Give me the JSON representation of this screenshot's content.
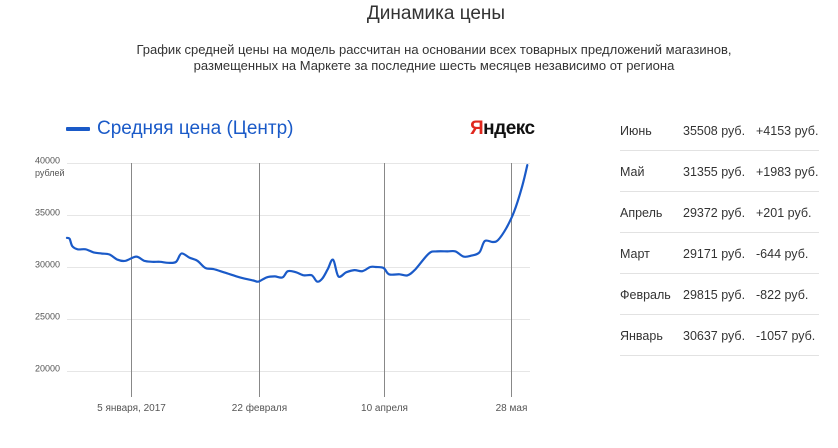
{
  "header": {
    "title": "Динамика цены",
    "subtitle_line1": "График средней цены на модель рассчитан на основании всех товарных предложений магазинов,",
    "subtitle_line2": "размещенных на Маркете за последние шесть месяцев независимо от региона"
  },
  "legend": {
    "label": "Средняя цена (Центр)"
  },
  "logo": {
    "first": "Я",
    "rest": "ндекс"
  },
  "colors": {
    "series": "#1a5ac8",
    "logo_red": "#e0281e",
    "grid": "#e6e6e6",
    "marker": "#888888"
  },
  "chart_data": {
    "type": "line",
    "title": "",
    "xlabel": "",
    "ylabel": "рублей",
    "ylim": [
      17500,
      40000
    ],
    "y_ticks": [
      20000,
      25000,
      30000,
      35000,
      40000
    ],
    "y_tick_labels": [
      "20000",
      "25000",
      "30000",
      "35000",
      "40000"
    ],
    "y_unit_label": "рублей",
    "x_range": [
      "2016-12-12",
      "2017-06-04"
    ],
    "x_ticks": [
      {
        "date": "2017-01-05",
        "label": "5 января, 2017"
      },
      {
        "date": "2017-02-22",
        "label": "22 февраля"
      },
      {
        "date": "2017-04-10",
        "label": "10 апреля"
      },
      {
        "date": "2017-05-28",
        "label": "28 мая"
      }
    ],
    "grid": true,
    "series": [
      {
        "name": "Средняя цена (Центр)",
        "points": [
          [
            "2016-12-12",
            32800
          ],
          [
            "2016-12-13",
            32700
          ],
          [
            "2016-12-14",
            32000
          ],
          [
            "2016-12-16",
            31700
          ],
          [
            "2016-12-19",
            31700
          ],
          [
            "2016-12-22",
            31400
          ],
          [
            "2016-12-25",
            31300
          ],
          [
            "2016-12-28",
            31200
          ],
          [
            "2016-12-31",
            30700
          ],
          [
            "2017-01-03",
            30600
          ],
          [
            "2017-01-07",
            31000
          ],
          [
            "2017-01-10",
            30600
          ],
          [
            "2017-01-13",
            30500
          ],
          [
            "2017-01-16",
            30500
          ],
          [
            "2017-01-19",
            30400
          ],
          [
            "2017-01-22",
            30500
          ],
          [
            "2017-01-24",
            31300
          ],
          [
            "2017-01-27",
            30900
          ],
          [
            "2017-01-30",
            30600
          ],
          [
            "2017-02-02",
            29900
          ],
          [
            "2017-02-05",
            29800
          ],
          [
            "2017-02-10",
            29400
          ],
          [
            "2017-02-15",
            29000
          ],
          [
            "2017-02-20",
            28700
          ],
          [
            "2017-02-22",
            28600
          ],
          [
            "2017-02-25",
            29000
          ],
          [
            "2017-02-28",
            29100
          ],
          [
            "2017-03-03",
            29000
          ],
          [
            "2017-03-05",
            29600
          ],
          [
            "2017-03-08",
            29500
          ],
          [
            "2017-03-11",
            29200
          ],
          [
            "2017-03-14",
            29200
          ],
          [
            "2017-03-16",
            28600
          ],
          [
            "2017-03-18",
            28900
          ],
          [
            "2017-03-20",
            29800
          ],
          [
            "2017-03-22",
            30700
          ],
          [
            "2017-03-24",
            29100
          ],
          [
            "2017-03-27",
            29500
          ],
          [
            "2017-03-30",
            29700
          ],
          [
            "2017-04-02",
            29600
          ],
          [
            "2017-04-05",
            30000
          ],
          [
            "2017-04-07",
            30000
          ],
          [
            "2017-04-10",
            29900
          ],
          [
            "2017-04-12",
            29300
          ],
          [
            "2017-04-16",
            29300
          ],
          [
            "2017-04-19",
            29200
          ],
          [
            "2017-04-22",
            29800
          ],
          [
            "2017-04-27",
            31300
          ],
          [
            "2017-04-30",
            31500
          ],
          [
            "2017-05-04",
            31500
          ],
          [
            "2017-05-07",
            31500
          ],
          [
            "2017-05-10",
            31000
          ],
          [
            "2017-05-13",
            31100
          ],
          [
            "2017-05-16",
            31400
          ],
          [
            "2017-05-18",
            32500
          ],
          [
            "2017-05-21",
            32400
          ],
          [
            "2017-05-23",
            32600
          ],
          [
            "2017-05-26",
            33700
          ],
          [
            "2017-05-29",
            35300
          ],
          [
            "2017-06-01",
            37700
          ],
          [
            "2017-06-03",
            39800
          ]
        ]
      }
    ]
  },
  "stats": [
    {
      "month": "Июнь",
      "price": "35508 руб.",
      "delta": "+4153 руб."
    },
    {
      "month": "Май",
      "price": "31355 руб.",
      "delta": "+1983 руб."
    },
    {
      "month": "Апрель",
      "price": "29372 руб.",
      "delta": "+201 руб."
    },
    {
      "month": "Март",
      "price": "29171 руб.",
      "delta": "-644 руб."
    },
    {
      "month": "Февраль",
      "price": "29815 руб.",
      "delta": "-822 руб."
    },
    {
      "month": "Январь",
      "price": "30637 руб.",
      "delta": "-1057 руб."
    }
  ]
}
